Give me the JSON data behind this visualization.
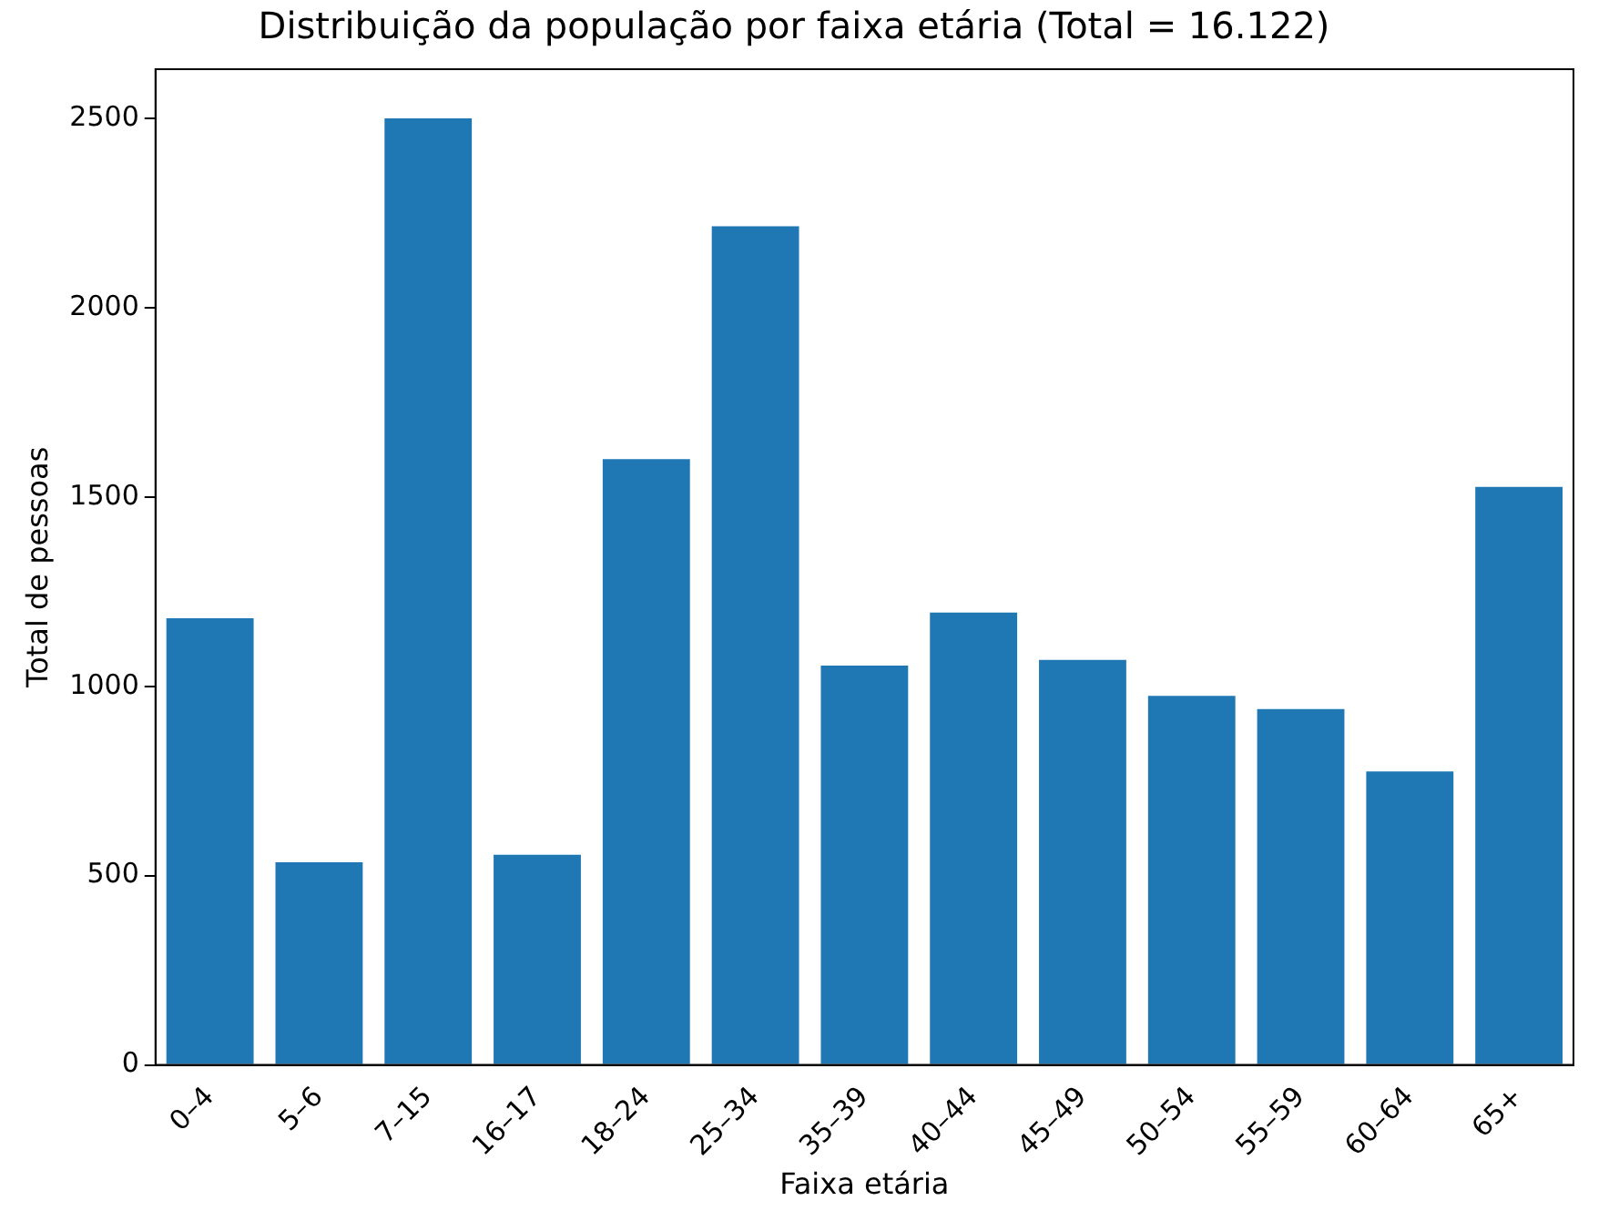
{
  "chart_data": {
    "type": "bar",
    "title": "Distribuição da população por faixa etária (Total = 16.122)",
    "xlabel": "Faixa etária",
    "ylabel": "Total de pessoas",
    "categories": [
      "0–4",
      "5–6",
      "7–15",
      "16–17",
      "18–24",
      "25–34",
      "35–39",
      "40–44",
      "45–49",
      "50–54",
      "55–59",
      "60–64",
      "65+"
    ],
    "values": [
      1180,
      535,
      2500,
      555,
      1600,
      2215,
      1055,
      1195,
      1070,
      975,
      940,
      775,
      1527
    ],
    "color": "#1f77b4",
    "ylim": [
      0,
      2630
    ],
    "yticks": [
      0,
      500,
      1000,
      1500,
      2000,
      2500
    ],
    "grid": false,
    "legend": false
  }
}
